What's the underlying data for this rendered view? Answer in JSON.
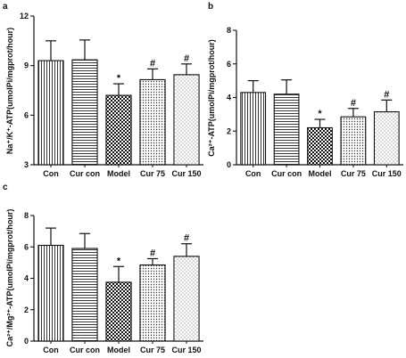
{
  "chart_data": [
    {
      "panel": "a",
      "type": "bar",
      "categories": [
        "Con",
        "Cur con",
        "Model",
        "Cur 75",
        "Cur 150"
      ],
      "values": [
        9.3,
        9.35,
        7.2,
        8.15,
        8.45
      ],
      "errors": [
        1.2,
        1.2,
        0.7,
        0.65,
        0.65
      ],
      "annotations": [
        "",
        "",
        "*",
        "#",
        "#"
      ],
      "patterns": [
        "vlines",
        "hlines",
        "checker",
        "dots",
        "sparse-dots"
      ],
      "ylabel": "Na⁺/K⁺-ATP(umolPi/mgprot/hour)",
      "ylim": [
        3,
        12
      ],
      "yticks": [
        "3",
        "6",
        "9",
        "12"
      ],
      "tick_values": [
        3,
        6,
        9,
        12
      ]
    },
    {
      "panel": "b",
      "type": "bar",
      "categories": [
        "Con",
        "Cur con",
        "Model",
        "Cur 75",
        "Cur 150"
      ],
      "values": [
        4.3,
        4.2,
        2.2,
        2.85,
        3.15
      ],
      "errors": [
        0.7,
        0.85,
        0.5,
        0.5,
        0.7
      ],
      "annotations": [
        "",
        "",
        "*",
        "#",
        "#"
      ],
      "patterns": [
        "vlines",
        "hlines",
        "checker",
        "dots",
        "sparse-dots"
      ],
      "ylabel": "Ca²⁺-ATP(umolPi/mgprot/hour)",
      "ylim": [
        0,
        8
      ],
      "yticks": [
        "0",
        "2",
        "4",
        "6",
        "8"
      ],
      "tick_values": [
        0,
        2,
        4,
        6,
        8
      ]
    },
    {
      "panel": "c",
      "type": "bar",
      "categories": [
        "Con",
        "Cur con",
        "Model",
        "Cur 75",
        "Cur 150"
      ],
      "values": [
        6.1,
        5.9,
        3.75,
        4.85,
        5.4
      ],
      "errors": [
        1.1,
        0.95,
        1.0,
        0.4,
        0.8
      ],
      "annotations": [
        "",
        "",
        "*",
        "#",
        "#"
      ],
      "patterns": [
        "vlines",
        "hlines",
        "checker",
        "dots",
        "sparse-dots"
      ],
      "ylabel": "Ca²⁺/Mg²⁺-ATP(umolPi/mgprot/hour)",
      "ylim": [
        0,
        8
      ],
      "yticks": [
        "0",
        "2",
        "4",
        "6",
        "8"
      ],
      "tick_values": [
        0,
        2,
        4,
        6,
        8
      ]
    }
  ]
}
